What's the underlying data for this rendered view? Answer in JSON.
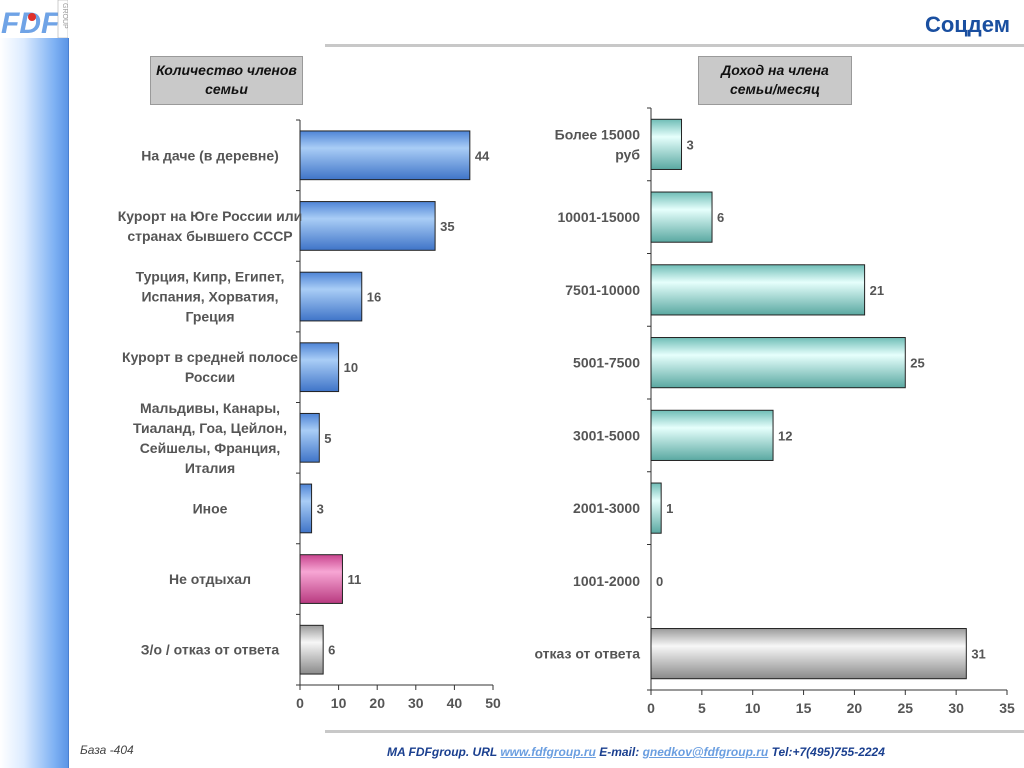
{
  "header": {
    "title": "Соцдем"
  },
  "logo": {
    "text": "FDF",
    "side_text": "GROUP"
  },
  "panels": {
    "left_title": "Количество членов семьи",
    "right_title": "Доход на члена семьи/месяц"
  },
  "footer": {
    "base": "База -404",
    "prefix": "MA FDFgroup. URL ",
    "url": "www.fdfgroup.ru",
    "email_label": " E-mail: ",
    "email": "gnedkov@fdfgroup.ru",
    "tel": " Tel:+7(495)755-2224"
  },
  "colors": {
    "left_bars": "#7fb0ec",
    "highlight_bar": "#ee7fc0",
    "neutral_bar": "#d8d8d8",
    "right_bars": "#a9eee8",
    "title": "#1a4fa0"
  },
  "chart_data": [
    {
      "type": "bar",
      "orientation": "horizontal",
      "categories": [
        "На даче (в деревне)",
        "Курорт на Юге России или странах бывшего СССР",
        "Турция, Кипр, Египет, Испания, Хорватия, Греция",
        "Курорт в средней полосе России",
        "Мальдивы, Канары, Тиаланд, Гоа, Цейлон, Сейшелы, Франция, Италия",
        "Иное",
        "Не отдыхал",
        "З/о / отказ от ответа"
      ],
      "values": [
        44,
        35,
        16,
        10,
        5,
        3,
        11,
        6
      ],
      "xlim": [
        0,
        50
      ],
      "ticks": [
        0,
        10,
        20,
        30,
        40,
        50
      ]
    },
    {
      "type": "bar",
      "orientation": "horizontal",
      "categories": [
        "Более 15000 руб",
        "10001-15000",
        "7501-10000",
        "5001-7500",
        "3001-5000",
        "2001-3000",
        "1001-2000",
        "отказ от ответа"
      ],
      "values": [
        3,
        6,
        21,
        25,
        12,
        1,
        0,
        31
      ],
      "xlim": [
        0,
        35
      ],
      "ticks": [
        0,
        5,
        10,
        15,
        20,
        25,
        30,
        35
      ]
    }
  ]
}
